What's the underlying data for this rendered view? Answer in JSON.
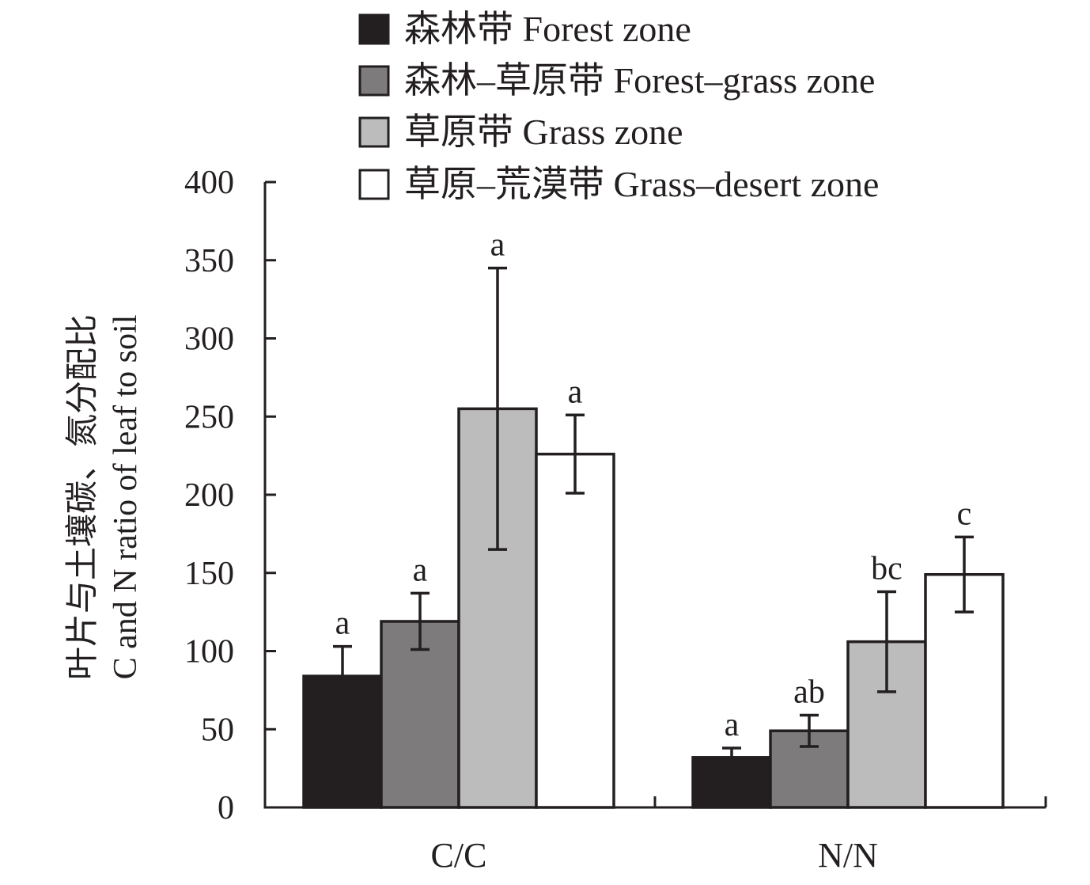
{
  "chart_data": {
    "type": "bar",
    "title": "",
    "xlabel": "",
    "ylabel": [
      "叶片与土壤碳、氮分配比",
      "C and N ratio of leaf to soil"
    ],
    "ylim": [
      0,
      400
    ],
    "yticks": [
      "0",
      "50",
      "100",
      "150",
      "200",
      "250",
      "300",
      "350",
      "400"
    ],
    "categories": [
      "C/C",
      "N/N"
    ],
    "legend_position": "top",
    "grid": false,
    "series": [
      {
        "name": "森林带 Forest zone",
        "color": "#231f20",
        "values": [
          84,
          32
        ],
        "errors": [
          19,
          6
        ],
        "letters": [
          "a",
          "a"
        ]
      },
      {
        "name": "森林–草原带 Forest–grass zone",
        "color": "#7d7b7c",
        "values": [
          119,
          49
        ],
        "errors": [
          18,
          10
        ],
        "letters": [
          "a",
          "ab"
        ]
      },
      {
        "name": "草原带 Grass zone",
        "color": "#bcbcbc",
        "values": [
          255,
          106
        ],
        "errors": [
          90,
          32
        ],
        "letters": [
          "a",
          "bc"
        ]
      },
      {
        "name": "草原–荒漠带 Grass–desert zone",
        "color": "#ffffff",
        "values": [
          226,
          149
        ],
        "errors": [
          25,
          24
        ],
        "letters": [
          "a",
          "c"
        ]
      }
    ]
  }
}
